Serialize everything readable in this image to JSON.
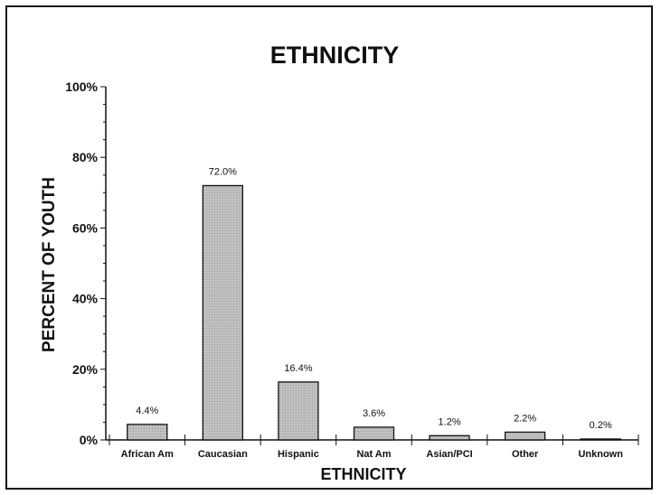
{
  "chart_data": {
    "type": "bar",
    "title": "ETHNICITY",
    "xlabel": "ETHNICITY",
    "ylabel": "PERCENT OF YOUTH",
    "categories": [
      "African Am",
      "Caucasian",
      "Hispanic",
      "Nat Am",
      "Asian/PCI",
      "Other",
      "Unknown"
    ],
    "values": [
      4.4,
      72.0,
      16.4,
      3.6,
      1.2,
      2.2,
      0.2
    ],
    "data_labels": [
      "4.4%",
      "72.0%",
      "16.4%",
      "3.6%",
      "1.2%",
      "2.2%",
      "0.2%"
    ],
    "ylim": [
      0,
      100
    ],
    "yticks": [
      0,
      20,
      40,
      60,
      80,
      100
    ],
    "ytick_labels": [
      "0%",
      "20%",
      "40%",
      "60%",
      "80%",
      "100%"
    ],
    "grid": false,
    "legend": "none",
    "bar_color": "#c8c8c8"
  }
}
